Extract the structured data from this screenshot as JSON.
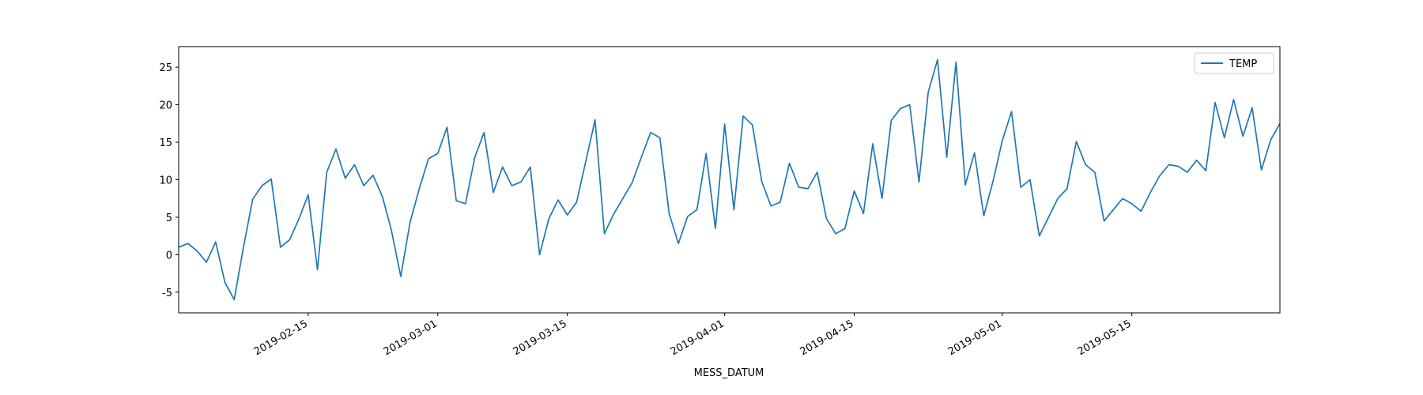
{
  "chart_data": {
    "type": "line",
    "xlabel": "MESS_DATUM",
    "x": [
      "2019-02-01",
      "2019-02-02",
      "2019-02-03",
      "2019-02-04",
      "2019-02-05",
      "2019-02-06",
      "2019-02-07",
      "2019-02-08",
      "2019-02-09",
      "2019-02-10",
      "2019-02-11",
      "2019-02-12",
      "2019-02-13",
      "2019-02-14",
      "2019-02-15",
      "2019-02-16",
      "2019-02-17",
      "2019-02-18",
      "2019-02-19",
      "2019-02-20",
      "2019-02-21",
      "2019-02-22",
      "2019-02-23",
      "2019-02-24",
      "2019-02-25",
      "2019-02-26",
      "2019-02-27",
      "2019-02-28",
      "2019-03-01",
      "2019-03-02",
      "2019-03-03",
      "2019-03-04",
      "2019-03-05",
      "2019-03-06",
      "2019-03-07",
      "2019-03-08",
      "2019-03-09",
      "2019-03-10",
      "2019-03-11",
      "2019-03-12",
      "2019-03-13",
      "2019-03-14",
      "2019-03-15",
      "2019-03-16",
      "2019-03-17",
      "2019-03-18",
      "2019-03-19",
      "2019-03-20",
      "2019-03-21",
      "2019-03-22",
      "2019-03-23",
      "2019-03-24",
      "2019-03-25",
      "2019-03-26",
      "2019-03-27",
      "2019-03-28",
      "2019-03-29",
      "2019-03-30",
      "2019-03-31",
      "2019-04-01",
      "2019-04-02",
      "2019-04-03",
      "2019-04-04",
      "2019-04-05",
      "2019-04-06",
      "2019-04-07",
      "2019-04-08",
      "2019-04-09",
      "2019-04-10",
      "2019-04-11",
      "2019-04-12",
      "2019-04-13",
      "2019-04-14",
      "2019-04-15",
      "2019-04-16",
      "2019-04-17",
      "2019-04-18",
      "2019-04-19",
      "2019-04-20",
      "2019-04-21",
      "2019-04-22",
      "2019-04-23",
      "2019-04-24",
      "2019-04-25",
      "2019-04-26",
      "2019-04-27",
      "2019-04-28",
      "2019-04-29",
      "2019-04-30",
      "2019-05-01",
      "2019-05-02",
      "2019-05-03",
      "2019-05-04",
      "2019-05-05",
      "2019-05-06",
      "2019-05-07",
      "2019-05-08",
      "2019-05-09",
      "2019-05-10",
      "2019-05-11",
      "2019-05-12",
      "2019-05-13",
      "2019-05-14",
      "2019-05-15",
      "2019-05-16",
      "2019-05-17",
      "2019-05-18",
      "2019-05-19",
      "2019-05-20",
      "2019-05-21",
      "2019-05-22",
      "2019-05-23",
      "2019-05-24",
      "2019-05-25",
      "2019-05-26",
      "2019-05-27",
      "2019-05-28",
      "2019-05-29",
      "2019-05-30",
      "2019-05-31"
    ],
    "series": [
      {
        "name": "TEMP",
        "color": "#1f77b4",
        "values": [
          1.0,
          1.5,
          0.5,
          -1.0,
          1.7,
          -3.7,
          -6.0,
          1.0,
          7.4,
          9.2,
          10.1,
          1.0,
          2.0,
          4.8,
          8.0,
          -2.0,
          11.0,
          14.1,
          10.2,
          12.0,
          9.2,
          10.6,
          7.8,
          3.2,
          -2.9,
          4.3,
          8.8,
          12.8,
          13.5,
          17.0,
          7.2,
          6.8,
          13.0,
          16.3,
          8.3,
          11.7,
          9.2,
          9.7,
          11.7,
          0.0,
          4.8,
          7.3,
          5.3,
          7.0,
          12.5,
          18.0,
          2.8,
          5.4,
          7.5,
          9.6,
          13.0,
          16.3,
          15.6,
          5.5,
          1.5,
          5.1,
          6.0,
          13.5,
          3.5,
          17.4,
          6.0,
          18.5,
          17.3,
          9.8,
          6.5,
          7.0,
          12.2,
          9.0,
          8.8,
          11.0,
          4.8,
          2.8,
          3.5,
          8.5,
          5.5,
          14.8,
          7.5,
          17.9,
          19.5,
          20.0,
          9.7,
          21.7,
          26.0,
          13.0,
          25.7,
          9.3,
          13.6,
          5.2,
          9.8,
          15.2,
          19.1,
          9.0,
          10.0,
          2.5,
          5.0,
          7.5,
          8.8,
          15.1,
          12.0,
          11.0,
          4.5,
          6.0,
          7.5,
          6.8,
          5.8,
          8.3,
          10.5,
          12.0,
          11.8,
          11.0,
          12.6,
          11.2,
          20.3,
          15.6,
          20.7,
          15.8,
          19.6,
          11.3,
          15.3,
          17.5
        ]
      }
    ],
    "xlim": [
      "2019-02-01",
      "2019-05-31"
    ],
    "xticks": [
      "2019-02-15",
      "2019-03-01",
      "2019-03-15",
      "2019-04-01",
      "2019-04-15",
      "2019-05-01",
      "2019-05-15"
    ],
    "ylim": [
      -7.75,
      27.75
    ],
    "yticks": [
      -5,
      0,
      5,
      10,
      15,
      20,
      25
    ],
    "grid": false,
    "legend": "upper right"
  }
}
